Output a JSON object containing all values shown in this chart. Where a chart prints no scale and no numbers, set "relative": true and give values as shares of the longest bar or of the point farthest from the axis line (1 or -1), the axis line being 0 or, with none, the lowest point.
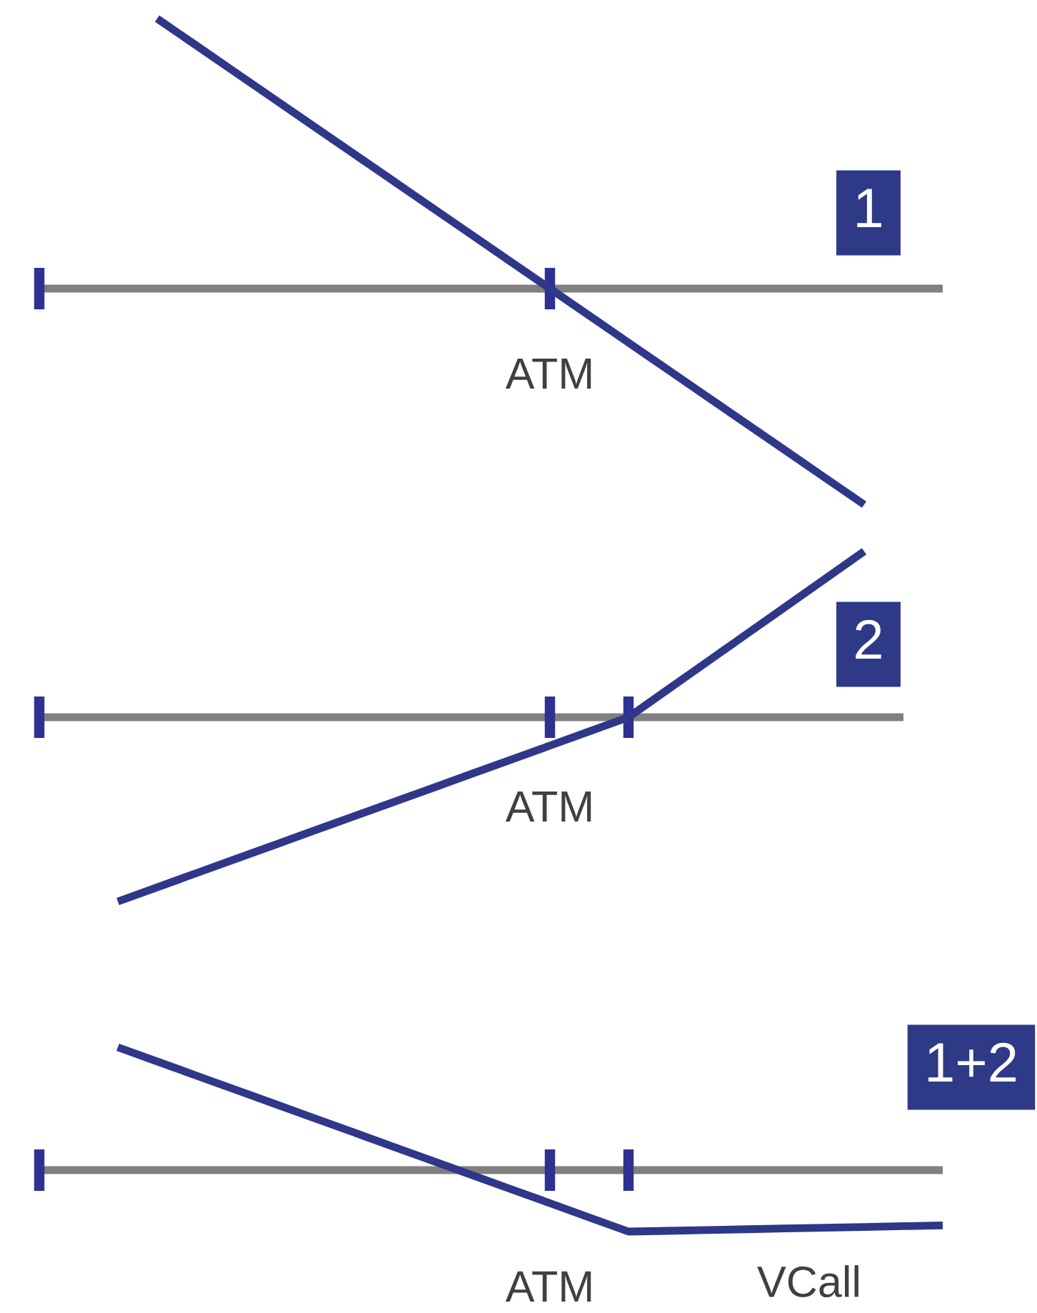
{
  "chart_data": [
    {
      "type": "line",
      "title": "1",
      "relative": true,
      "categories": [
        null,
        null,
        null,
        null,
        null,
        null,
        null,
        null,
        null,
        null,
        null,
        null,
        null,
        null,
        null,
        null,
        null,
        null,
        null,
        null,
        null,
        null,
        null,
        null
      ],
      "values": [
        null,
        null,
        null,
        1,
        0.9,
        0.8,
        0.7,
        0.6,
        0.5,
        0.4,
        0.3,
        0.2,
        0.1,
        0,
        -0.1,
        -0.2,
        -0.3,
        -0.4,
        -0.5,
        -0.6,
        -0.7,
        -0.8,
        null,
        null
      ],
      "color": "#2e3788",
      "annotations": [
        "ATM"
      ]
    },
    {
      "type": "line",
      "title": "2",
      "relative": true,
      "categories": [
        null,
        null,
        null,
        null,
        null,
        null,
        null,
        null,
        null,
        null,
        null,
        null,
        null,
        null,
        null,
        null,
        null,
        null,
        null,
        null,
        null,
        null,
        null
      ],
      "values": [
        null,
        null,
        -1,
        -0.923,
        -0.846,
        -0.769,
        -0.692,
        -0.615,
        -0.538,
        -0.462,
        -0.385,
        -0.308,
        -0.231,
        -0.154,
        -0.077,
        0,
        0.15,
        0.3,
        0.45,
        0.6,
        0.75,
        0.9,
        null
      ],
      "color": "#2e3788",
      "annotations": [
        "ATM"
      ]
    },
    {
      "type": "line",
      "title": "1+2",
      "relative": true,
      "categories": [
        null,
        null,
        null,
        null,
        null,
        null,
        null,
        null,
        null,
        null,
        null,
        null,
        null,
        null,
        null,
        null,
        null,
        null,
        null,
        null,
        null,
        null,
        null,
        null
      ],
      "series": [
        {
          "name": "VCall",
          "color": "#2e3788",
          "values": [
            null,
            null,
            1,
            0.885,
            0.769,
            0.654,
            0.538,
            0.423,
            0.308,
            0.192,
            0.077,
            -0.038,
            -0.154,
            -0.269,
            -0.385,
            -0.5,
            -0.494,
            -0.488,
            -0.481,
            -0.475,
            -0.469,
            -0.463,
            -0.456,
            -0.45
          ]
        }
      ],
      "annotations": [
        "ATM"
      ]
    }
  ]
}
